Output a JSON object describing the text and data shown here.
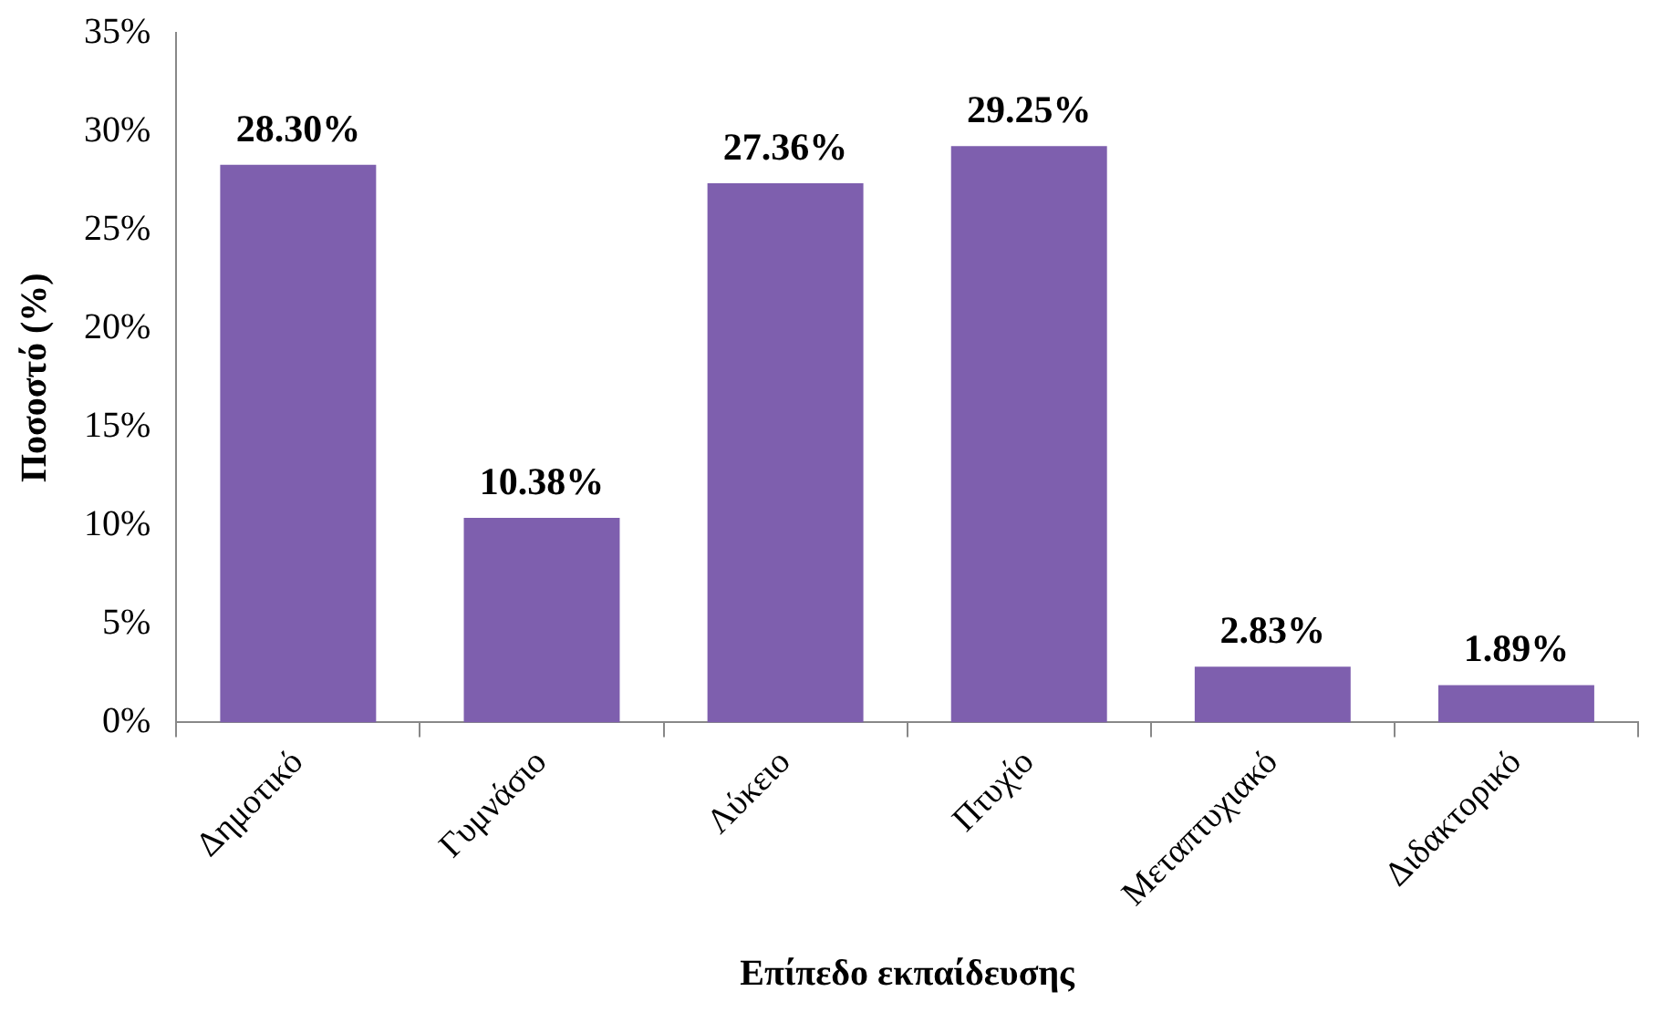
{
  "chart_data": {
    "type": "bar",
    "xlabel": "Επίπεδο εκπαίδευσης",
    "ylabel": "Ποσοστό (%)",
    "categories": [
      "Δημοτικό",
      "Γυμνάσιο",
      "Λύκειο",
      "Πτυχίο",
      "Μεταπτυχιακό",
      "Διδακτορικό"
    ],
    "values": [
      28.3,
      10.38,
      27.36,
      29.25,
      2.83,
      1.89
    ],
    "value_labels": [
      "28.30%",
      "10.38%",
      "27.36%",
      "29.25%",
      "2.83%",
      "1.89%"
    ],
    "color": "#7e5fae",
    "ylim": [
      0,
      35
    ],
    "yticks": [
      {
        "value": 0,
        "label": "0%"
      },
      {
        "value": 5,
        "label": "5%"
      },
      {
        "value": 10,
        "label": "10%"
      },
      {
        "value": 15,
        "label": "15%"
      },
      {
        "value": 20,
        "label": "20%"
      },
      {
        "value": 25,
        "label": "25%"
      },
      {
        "value": 30,
        "label": "30%"
      },
      {
        "value": 35,
        "label": "35%"
      }
    ],
    "grid": false,
    "legend": false
  }
}
